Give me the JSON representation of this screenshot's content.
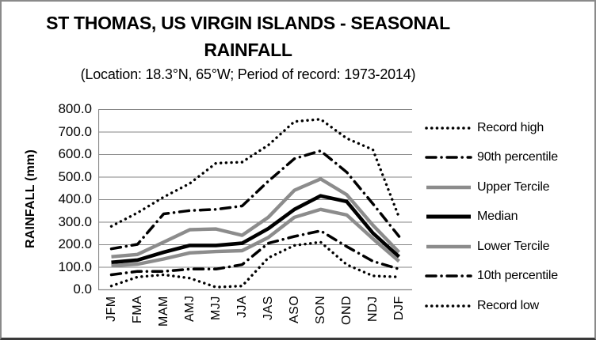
{
  "chart_data": {
    "type": "line",
    "title": "ST THOMAS, US VIRGIN ISLANDS - SEASONAL RAINFALL",
    "subtitle": "(Location: 18.3°N, 65°W; Period of record: 1973-2014)",
    "ylabel": "RAINFALL (mm)",
    "xlabel": "",
    "ylim": [
      0,
      800
    ],
    "ytick_step": 100,
    "ytick_decimals": 1,
    "grid": "horizontal",
    "legend_position": "right",
    "categories": [
      "JFM",
      "FMA",
      "MAM",
      "AMJ",
      "MJJ",
      "JJA",
      "JAS",
      "ASO",
      "SON",
      "OND",
      "NDJ",
      "DJF"
    ],
    "series": [
      {
        "name": "Record high",
        "style": "dotted",
        "color": "black",
        "values": [
          280,
          340,
          410,
          470,
          560,
          565,
          640,
          745,
          755,
          670,
          620,
          320
        ]
      },
      {
        "name": "90th percentile",
        "style": "dashdot",
        "color": "black",
        "values": [
          180,
          200,
          335,
          350,
          355,
          370,
          480,
          580,
          615,
          520,
          380,
          235
        ]
      },
      {
        "name": "Upper Tercile",
        "style": "solid",
        "color": "gray",
        "values": [
          145,
          155,
          210,
          265,
          268,
          240,
          320,
          440,
          490,
          420,
          285,
          165
        ]
      },
      {
        "name": "Median",
        "style": "solid",
        "color": "black",
        "values": [
          120,
          130,
          165,
          195,
          195,
          205,
          270,
          355,
          415,
          390,
          250,
          145
        ]
      },
      {
        "name": "Lower Tercile",
        "style": "solid",
        "color": "gray",
        "values": [
          105,
          112,
          135,
          162,
          168,
          172,
          230,
          320,
          355,
          330,
          225,
          125
        ]
      },
      {
        "name": "10th percentile",
        "style": "dashdot",
        "color": "black",
        "values": [
          65,
          80,
          80,
          90,
          90,
          110,
          205,
          235,
          260,
          190,
          125,
          90
        ]
      },
      {
        "name": "Record low",
        "style": "dotted",
        "color": "black",
        "values": [
          15,
          55,
          65,
          50,
          10,
          15,
          140,
          195,
          210,
          110,
          60,
          55
        ]
      }
    ]
  },
  "colors": {
    "black": "#000000",
    "gray": "#8c8c8c",
    "grid": "#868686",
    "axis": "#868686",
    "frame": "#8a8a8a"
  }
}
